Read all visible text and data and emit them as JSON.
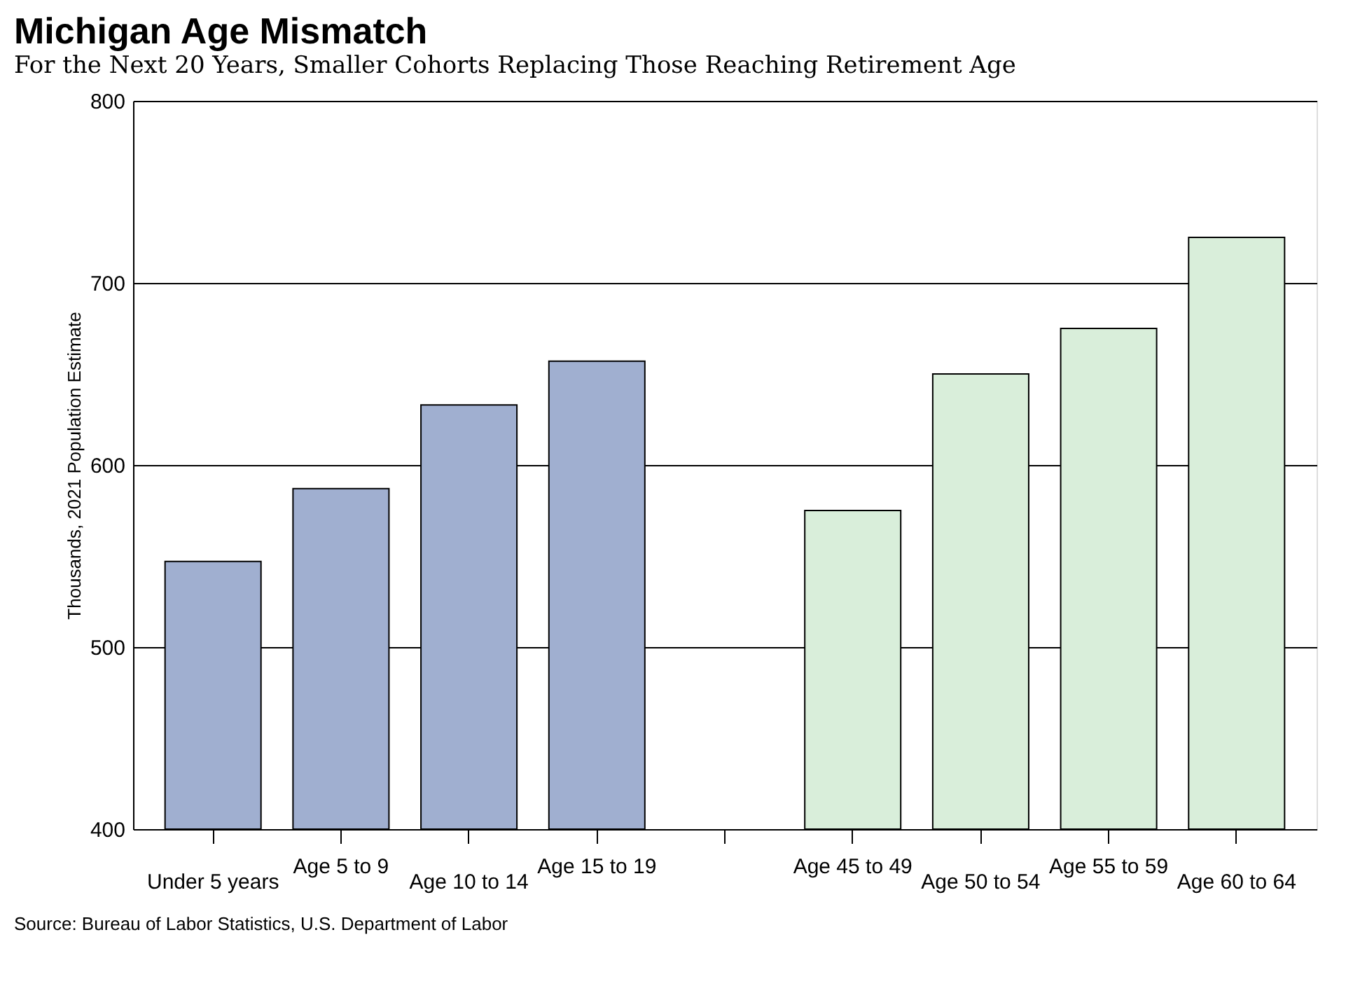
{
  "chart_data": {
    "type": "bar",
    "title": "Michigan Age Mismatch",
    "subtitle": "For the Next 20 Years, Smaller Cohorts Replacing Those Reaching Retirement Age",
    "ylabel": "Thousands, 2021 Population Estimate",
    "categories": [
      "Under 5 years",
      "Age 5 to 9",
      "Age 10 to 14",
      "Age 15 to 19",
      null,
      "Age 45 to 49",
      "Age 50 to 54",
      "Age 55 to 59",
      "Age 60 to 64"
    ],
    "values": [
      547,
      587,
      633,
      657,
      null,
      575,
      650,
      675,
      725
    ],
    "colors": [
      "#a0afd0",
      "#a0afd0",
      "#a0afd0",
      "#a0afd0",
      "#a0afd0",
      "#d9eeda",
      "#d9eeda",
      "#d9eeda",
      "#d9eeda"
    ],
    "ylim": [
      400,
      800
    ],
    "yticks": [
      400,
      500,
      600,
      700,
      800
    ],
    "grid": "y",
    "annotations": [
      "Source: Bureau of Labor Statistics, U.S. Department of Labor"
    ]
  }
}
